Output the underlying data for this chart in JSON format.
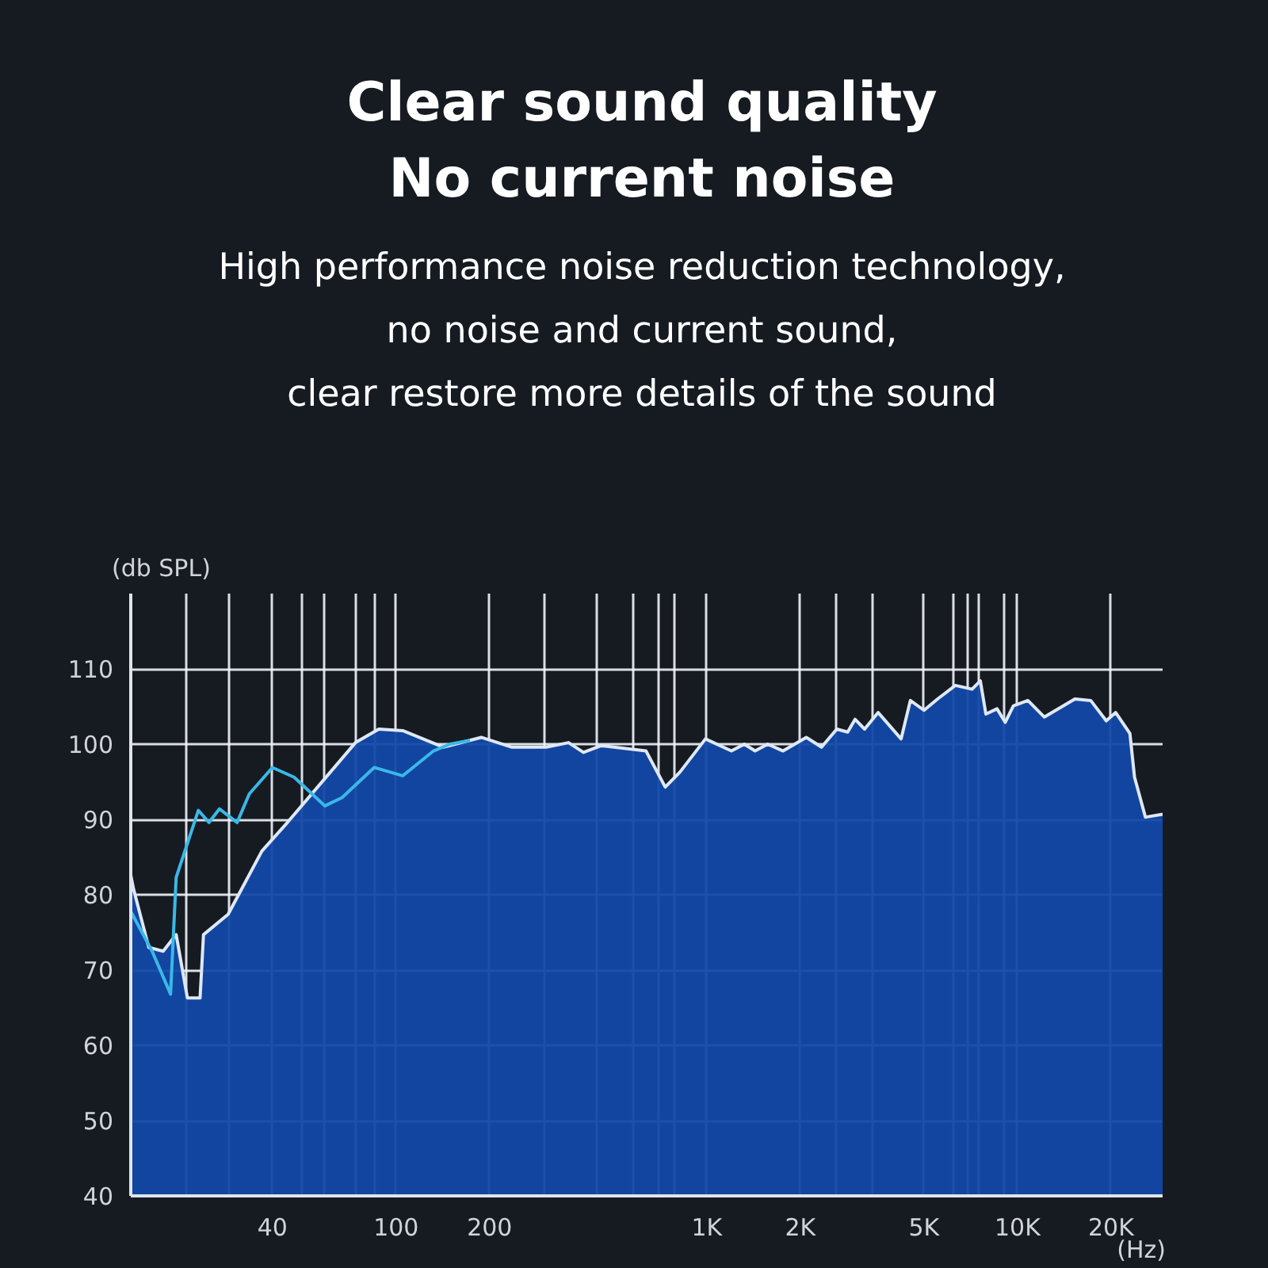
{
  "chart_data": {
    "type": "area",
    "title": "Clear sound quality\nNo current noise",
    "subtitle": "High performance noise reduction technology,\nno noise and current sound,\nclear restore more details of the sound",
    "ylabel": "(db SPL)",
    "xlabel": "(Hz)",
    "log": "x",
    "xlim": [
      14,
      29300
    ],
    "ylim": [
      40,
      120
    ],
    "xticks": [
      {
        "value": 21,
        "label": null
      },
      {
        "value": 29,
        "label": null
      },
      40,
      {
        "value": 50,
        "label": null
      },
      {
        "value": 59,
        "label": null
      },
      {
        "value": 74,
        "label": null
      },
      {
        "value": 85,
        "label": null
      },
      100,
      200,
      {
        "value": 300,
        "label": null
      },
      {
        "value": 440,
        "label": null
      },
      {
        "value": 580,
        "label": null
      },
      {
        "value": 700,
        "label": null
      },
      {
        "value": 790,
        "label": null
      },
      {
        "value": 1000,
        "label": "1K"
      },
      {
        "value": 2000,
        "label": "2K"
      },
      {
        "value": 2600,
        "label": null
      },
      {
        "value": 3400,
        "label": null
      },
      {
        "value": 5000,
        "label": "5K"
      },
      {
        "value": 6200,
        "label": null
      },
      {
        "value": 6900,
        "label": null
      },
      {
        "value": 7500,
        "label": null
      },
      {
        "value": 9000,
        "label": null
      },
      {
        "value": 10000,
        "label": "10K"
      },
      {
        "value": 20000,
        "label": "20K"
      }
    ],
    "yticks": [
      40,
      50,
      60,
      70,
      80,
      90,
      100,
      110
    ],
    "grid": true,
    "series": [
      {
        "color": "#1248a8",
        "x": [
          14,
          14.3,
          16,
          17.8,
          19.6,
          21.3,
          23.4,
          24,
          28.8,
          37,
          44.7,
          74,
          88,
          105,
          142,
          188,
          236,
          304,
          359,
          401,
          457,
          637,
          735,
          820,
          990,
          1200,
          1320,
          1430,
          1570,
          1760,
          2090,
          2340,
          2620,
          2840,
          3000,
          3220,
          3560,
          4220,
          4520,
          5000,
          5530,
          6310,
          7140,
          7590,
          7910,
          8590,
          9130,
          9700,
          10800,
          12200,
          15300,
          17200,
          19300,
          20700,
          23000,
          23800,
          25800,
          29300
        ],
        "values": [
          82.6,
          80.7,
          73.0,
          72.5,
          74.7,
          66.3,
          66.3,
          74.7,
          77.4,
          85.8,
          89.6,
          100.2,
          102.0,
          101.8,
          99.6,
          100.9,
          99.6,
          99.6,
          100.2,
          98.9,
          99.8,
          99.1,
          94.3,
          96.3,
          100.7,
          99.1,
          100.0,
          99.1,
          100.0,
          99.1,
          100.9,
          99.6,
          102.0,
          101.6,
          103.3,
          102.0,
          104.2,
          100.7,
          105.8,
          104.5,
          106.0,
          107.8,
          107.3,
          108.4,
          104.0,
          104.7,
          102.9,
          105.1,
          105.8,
          103.6,
          106.0,
          105.8,
          103.1,
          104.2,
          101.4,
          95.6,
          90.3,
          90.7
        ]
      },
      {
        "type": "line",
        "color": "#3ab8e8",
        "x": [
          14,
          16.4,
          18.8,
          19.6,
          23.1,
          25,
          27,
          30.8,
          33.7,
          40,
          47,
          59,
          67,
          85,
          105,
          132,
          149,
          173
        ],
        "values": [
          77.8,
          72.5,
          66.8,
          82.3,
          91.2,
          89.6,
          91.4,
          89.6,
          93.4,
          96.9,
          95.6,
          91.8,
          92.9,
          96.9,
          95.8,
          99.1,
          100.0,
          100.5
        ]
      }
    ]
  }
}
